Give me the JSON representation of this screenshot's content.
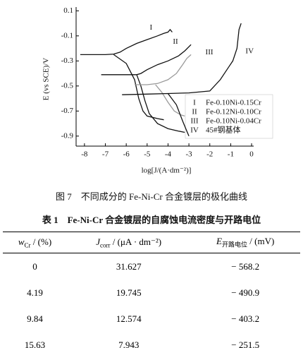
{
  "chart_data": {
    "type": "line",
    "x_label": "log[J/(A·dm⁻²)]",
    "y_label": "E (vs SCE)/V",
    "xlim": [
      -8.4,
      0.1
    ],
    "ylim": [
      -0.98,
      0.13
    ],
    "xticks": [
      -8,
      -7,
      -6,
      -5,
      -4,
      -3,
      -2,
      -1,
      0
    ],
    "yticks": [
      0.1,
      -0.1,
      -0.3,
      -0.5,
      -0.7,
      -0.9
    ],
    "series": [
      {
        "name": "Fe-0.10Ni-0.15Cr",
        "label": "I",
        "color": "#111111",
        "x": [
          -8.2,
          -7.5,
          -7,
          -6.6,
          -6.3,
          -6,
          -5.5,
          -5,
          -4.5,
          -4.2,
          -4,
          -3.9,
          -3.8,
          null,
          -6.6,
          -6,
          -5.6,
          -5.4,
          -5.2,
          -5,
          -4.5,
          -4.2
        ],
        "values": [
          -0.25,
          -0.25,
          -0.25,
          -0.245,
          -0.23,
          -0.2,
          -0.16,
          -0.13,
          -0.1,
          -0.08,
          -0.07,
          -0.05,
          -0.07,
          null,
          -0.25,
          -0.32,
          -0.45,
          -0.6,
          -0.7,
          -0.74,
          -0.76,
          -0.77
        ]
      },
      {
        "name": "Fe-0.12Ni-0.10Cr",
        "label": "II",
        "color": "#111111",
        "x": [
          -7.2,
          -6.5,
          -6,
          -5.5,
          -5.3,
          -5,
          -4.5,
          -4,
          -3.5,
          -3.2,
          -2.9,
          null,
          -5.5,
          -5.3,
          -5.1,
          -4.9,
          -4.5,
          -4,
          -3.5,
          -3.2
        ],
        "values": [
          -0.41,
          -0.41,
          -0.41,
          -0.41,
          -0.4,
          -0.37,
          -0.33,
          -0.3,
          -0.26,
          -0.22,
          -0.17,
          null,
          -0.41,
          -0.5,
          -0.62,
          -0.72,
          -0.8,
          -0.84,
          -0.86,
          -0.87
        ]
      },
      {
        "name": "Fe-0.10Ni-0.04Cr",
        "label": "III",
        "color": "#999999",
        "x": [
          -5.6,
          -5,
          -4.5,
          -4,
          -3.6,
          -3.3,
          -3.1,
          -2.9,
          null,
          -4.6,
          -4.3,
          -4,
          -3.7,
          -3.4,
          -3.2
        ],
        "values": [
          -0.49,
          -0.49,
          -0.48,
          -0.45,
          -0.4,
          -0.33,
          -0.28,
          -0.25,
          null,
          -0.49,
          -0.55,
          -0.63,
          -0.7,
          -0.73,
          -0.74
        ]
      },
      {
        "name": "45#钢基体",
        "label": "IV",
        "color": "#111111",
        "x": [
          -6.2,
          -5,
          -4,
          -3,
          -2,
          -1.5,
          -1.1,
          -0.9,
          -0.7,
          -0.6,
          -0.5,
          null,
          -4,
          -3.6,
          -3.3,
          -3.1,
          -3
        ],
        "values": [
          -0.57,
          -0.565,
          -0.56,
          -0.555,
          -0.54,
          -0.45,
          -0.35,
          -0.3,
          -0.2,
          -0.05,
          0.0,
          null,
          -0.56,
          -0.65,
          -0.78,
          -0.86,
          -0.9
        ]
      }
    ]
  },
  "caption": "图 7　不同成分的 Fe-Ni-Cr 合金镀层的极化曲线",
  "table": {
    "title": "表 1　Fe-Ni-Cr 合金镀层的自腐蚀电流密度与开路电位",
    "headers": [
      {
        "symbol": "w",
        "sub": "Cr",
        "unit": "/ (%)"
      },
      {
        "symbol": "J",
        "sub": "corr",
        "unit": "/ (μA · dm⁻²)"
      },
      {
        "symbol": "E",
        "sub": "开路电位",
        "unit": "/ (mV)"
      }
    ],
    "rows": [
      [
        "0",
        "31.627",
        "− 568.2"
      ],
      [
        "4.19",
        "19.745",
        "− 490.9"
      ],
      [
        "9.84",
        "12.574",
        "− 403.2"
      ],
      [
        "15.63",
        "7.943",
        "− 251.5"
      ]
    ]
  }
}
